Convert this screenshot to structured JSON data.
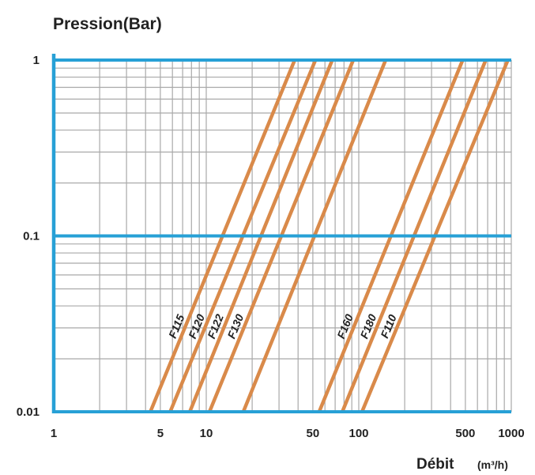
{
  "chart_data": {
    "type": "line",
    "title": "",
    "ylabel": "Pression(Bar)",
    "xlabel_main": "Débit",
    "xlabel_unit": "(m³/h)",
    "x_scale": "log",
    "y_scale": "log",
    "xlim": [
      1,
      1000
    ],
    "ylim": [
      0.01,
      1
    ],
    "grid": true,
    "legend": "none",
    "x_ticks": [
      {
        "value": 1,
        "label": "1"
      },
      {
        "value": 5,
        "label": "5"
      },
      {
        "value": 10,
        "label": "10"
      },
      {
        "value": 50,
        "label": "50"
      },
      {
        "value": 100,
        "label": "100"
      },
      {
        "value": 500,
        "label": "500"
      },
      {
        "value": 1000,
        "label": "1000"
      }
    ],
    "y_ticks": [
      {
        "value": 1,
        "label": "1"
      },
      {
        "value": 0.1,
        "label": "0.1"
      },
      {
        "value": 0.01,
        "label": "0.01"
      }
    ],
    "colors": {
      "axis": "#27a0d6",
      "grid": "#a9a9a9",
      "series": "#d98a4a"
    },
    "series": [
      {
        "name": "F115",
        "x": [
          4.3,
          38
        ],
        "y": [
          0.01,
          1
        ]
      },
      {
        "name": "F120",
        "x": [
          5.8,
          52
        ],
        "y": [
          0.01,
          1
        ]
      },
      {
        "name": "F122",
        "x": [
          7.8,
          67
        ],
        "y": [
          0.01,
          1
        ]
      },
      {
        "name": "F130",
        "x": [
          10.5,
          92
        ],
        "y": [
          0.01,
          1
        ]
      },
      {
        "name": "",
        "x": [
          17.5,
          150
        ],
        "y": [
          0.01,
          1
        ]
      },
      {
        "name": "F160",
        "x": [
          55,
          480
        ],
        "y": [
          0.01,
          1
        ]
      },
      {
        "name": "F180",
        "x": [
          78,
          680
        ],
        "y": [
          0.01,
          1
        ]
      },
      {
        "name": "F110",
        "x": [
          105,
          950
        ],
        "y": [
          0.01,
          1
        ]
      }
    ]
  }
}
